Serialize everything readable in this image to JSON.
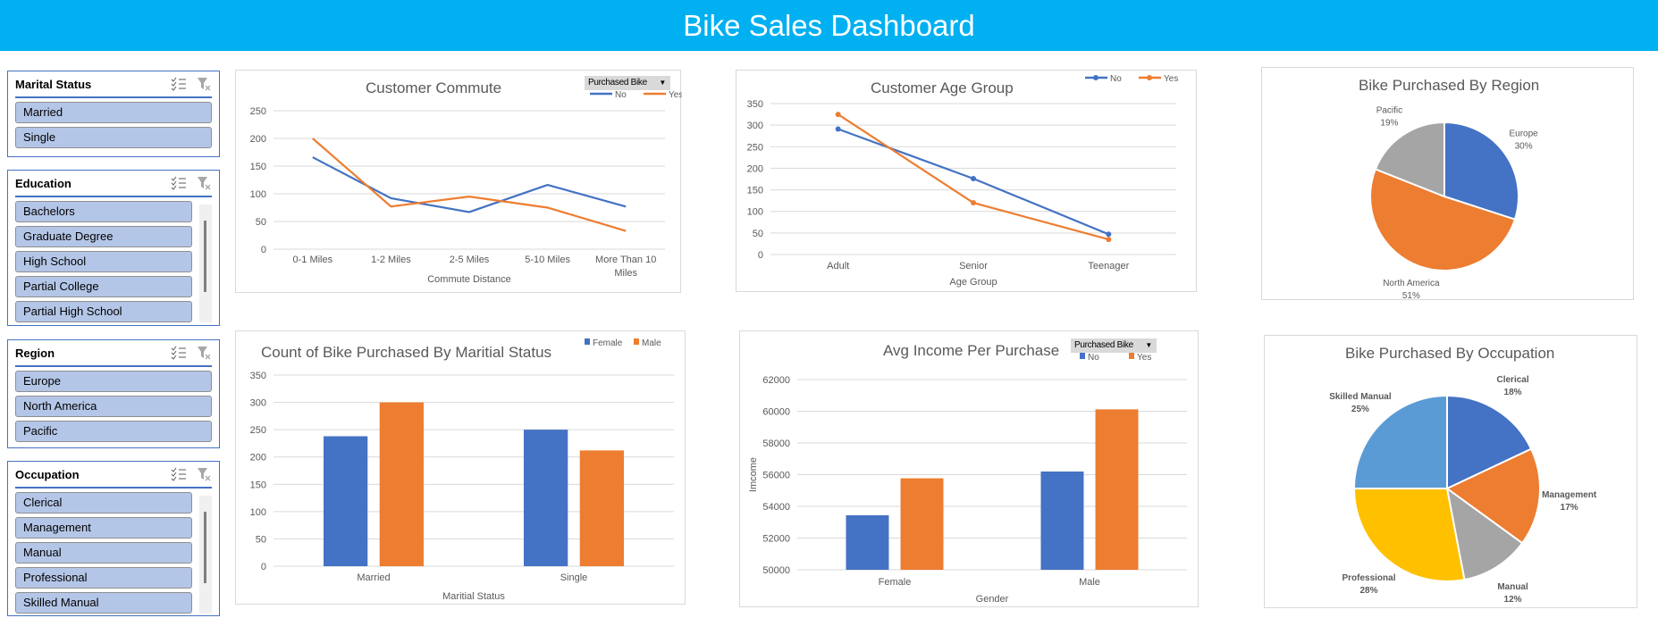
{
  "header": {
    "title": "Bike Sales Dashboard"
  },
  "slicers": [
    {
      "title": "Marital Status",
      "items": [
        "Married",
        "Single"
      ]
    },
    {
      "title": "Education",
      "items": [
        "Bachelors",
        "Graduate Degree",
        "High School",
        "Partial College",
        "Partial High School"
      ]
    },
    {
      "title": "Region",
      "items": [
        "Europe",
        "North America",
        "Pacific"
      ]
    },
    {
      "title": "Occupation",
      "items": [
        "Clerical",
        "Management",
        "Manual",
        "Professional",
        "Skilled Manual"
      ]
    }
  ],
  "colors": {
    "blue": "#4472c4",
    "orange": "#ed7d31",
    "gray": "#a5a5a5",
    "yellow": "#ffc000",
    "lightblue": "#5b9bd5"
  },
  "chart_data": [
    {
      "id": "commute",
      "type": "line",
      "title": "Customer Commute",
      "filter_label": "Purchased Bike",
      "categories": [
        "0-1 Miles",
        "1-2 Miles",
        "2-5 Miles",
        "5-10 Miles",
        "More Than 10 Miles"
      ],
      "series": [
        {
          "name": "No",
          "values": [
            166,
            92,
            67,
            116,
            77
          ]
        },
        {
          "name": "Yes",
          "values": [
            200,
            77,
            95,
            75,
            33
          ]
        }
      ],
      "xlabel": "Commute Distance",
      "ylabel": "",
      "ylim": [
        0,
        250
      ],
      "yticks": [
        "0",
        "50",
        "100",
        "150",
        "200",
        "250"
      ],
      "legend": "top-right",
      "grid": true
    },
    {
      "id": "age",
      "type": "line",
      "title": "Customer Age Group",
      "categories": [
        "Adult",
        "Senior",
        "Teenager"
      ],
      "series": [
        {
          "name": "No",
          "values": [
            291,
            176,
            47
          ]
        },
        {
          "name": "Yes",
          "values": [
            325,
            120,
            35
          ]
        }
      ],
      "xlabel": "Age Group",
      "ylabel": "",
      "ylim": [
        0,
        350
      ],
      "yticks": [
        "0",
        "50",
        "100",
        "150",
        "200",
        "250",
        "300",
        "350"
      ],
      "legend": "top-right",
      "grid": true,
      "markers": true
    },
    {
      "id": "region",
      "type": "pie",
      "title": "Bike Purchased By Region",
      "labels": [
        "Europe",
        "North America",
        "Pacific"
      ],
      "values": [
        30,
        51,
        19
      ],
      "value_labels": [
        "30%",
        "51%",
        "19%"
      ]
    },
    {
      "id": "marital",
      "type": "bar",
      "title": "Count of Bike Purchased By Maritial Status",
      "categories": [
        "Married",
        "Single"
      ],
      "series": [
        {
          "name": "Female",
          "values": [
            238,
            250
          ]
        },
        {
          "name": "Male",
          "values": [
            300,
            212
          ]
        }
      ],
      "xlabel": "Maritial Status",
      "ylabel": "",
      "ylim": [
        0,
        350
      ],
      "yticks": [
        "0",
        "50",
        "100",
        "150",
        "200",
        "250",
        "300",
        "350"
      ],
      "legend": "top-right",
      "grid": true
    },
    {
      "id": "income",
      "type": "bar",
      "title": "Avg Income Per Purchase",
      "filter_label": "Purchased Bike",
      "categories": [
        "Female",
        "Male"
      ],
      "series": [
        {
          "name": "No",
          "values": [
            53440,
            56200
          ]
        },
        {
          "name": "Yes",
          "values": [
            55770,
            60120
          ]
        }
      ],
      "xlabel": "Gender",
      "ylabel": "Imcome",
      "ylim": [
        50000,
        62000
      ],
      "yticks": [
        "50000",
        "52000",
        "54000",
        "56000",
        "58000",
        "60000",
        "62000"
      ],
      "legend": "top-right",
      "grid": true
    },
    {
      "id": "occupation",
      "type": "pie",
      "title": "Bike Purchased By Occupation",
      "labels": [
        "Clerical",
        "Management",
        "Manual",
        "Professional",
        "Skilled Manual"
      ],
      "values": [
        18,
        17,
        12,
        28,
        25
      ],
      "value_labels": [
        "18%",
        "17%",
        "12%",
        "28%",
        "25%"
      ]
    }
  ]
}
